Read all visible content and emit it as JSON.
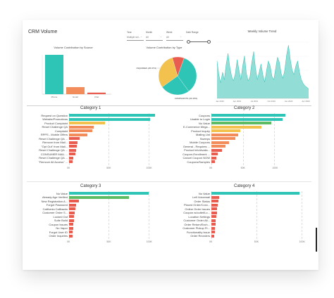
{
  "dashboard": {
    "title": "CRM Volume"
  },
  "filters": [
    {
      "label": "Year",
      "value": "Multiple sel..."
    },
    {
      "label": "Month",
      "value": "All"
    },
    {
      "label": "Week",
      "value": "All"
    },
    {
      "label": "Date Range",
      "value": ""
    }
  ],
  "colors": {
    "teal": "#2ec4b6",
    "orange": "#f28c5a",
    "red": "#e85d4f",
    "yellow": "#f2c14e",
    "green": "#5dbb63"
  },
  "source_chart": {
    "title": "Volume Contribution by Source",
    "categories": [
      "Phone",
      "Email",
      "Chat"
    ],
    "values": [
      100,
      18,
      4
    ],
    "colors": [
      "#2ec4b6",
      "#f28c5a",
      "#e85d4f"
    ]
  },
  "type_chart": {
    "title": "Volume Contribution by Type",
    "slices": [
      {
        "name": "COMPLAINTS (34.43%)",
        "value": 34.43,
        "color": "#2ec4b6"
      },
      {
        "name": "INQUIRIES (25.07%)",
        "value": 25.07,
        "color": "#2ec4b6"
      },
      {
        "name": "INFORMATION",
        "value": 30.5,
        "color": "#f2c14e"
      },
      {
        "name": "OTHER",
        "value": 10.0,
        "color": "#e85d4f"
      }
    ],
    "left_label": "INQUIRIES (25.07%)",
    "bottom_label": "COMPLAINTS (34.43%)"
  },
  "trend_chart": {
    "title": "Weekly Volume Trend",
    "x_ticks": [
      "Jan 2019",
      "Apr 2019",
      "Jul 2019",
      "Oct 2019",
      "Jan 2020",
      "Apr 2020"
    ],
    "values": [
      60,
      38,
      25,
      42,
      30,
      55,
      72,
      50,
      35,
      28,
      40,
      62,
      45,
      30,
      52,
      68,
      40,
      28,
      35,
      58,
      75,
      48,
      30,
      42,
      55,
      38,
      26,
      44,
      60,
      52,
      35,
      30,
      48,
      66,
      58,
      40,
      32,
      46,
      70,
      85,
      62,
      45,
      38,
      52,
      60,
      42,
      30,
      24,
      20,
      18,
      15
    ]
  },
  "category1": {
    "title": "Category 1",
    "labels": [
      "Request on Question",
      "Website/Promotions",
      "Product Complaint",
      "Reset Challenge QA",
      "Complaint",
      "RPPS - Mobile Offers",
      "Reset Challenge QA ...",
      "Remove from Mail...",
      "\"Opt Out\" from Mail...",
      "Reset Challenge QA ...",
      "CONSUMER MAIL ...",
      "Reset Challenge QA ...",
      "\"Remove All Access\" ..."
    ],
    "values": [
      108000,
      102000,
      45000,
      31000,
      29000,
      23000,
      13000,
      11000,
      10000,
      9000,
      8000,
      5000,
      4000
    ],
    "max": 120000,
    "ticks": [
      "0K",
      "50K",
      "100K"
    ],
    "tick_values": [
      0,
      50000,
      100000
    ]
  },
  "category2": {
    "title": "Category 2",
    "labels": [
      "Coupons",
      "Unable to Login",
      "No Value",
      "E-Commerce Mega...",
      "Product Inquiry",
      "Mailing List",
      "Sweeps",
      "Mobile Coupons",
      "General - Requires ...",
      "Product Info/Availa...",
      "Coupon-Enrollment ...",
      "Cancel Coupon NOW",
      "Coupons/Samples"
    ],
    "values": [
      118000,
      113000,
      95000,
      80000,
      46000,
      42000,
      38000,
      28000,
      22000,
      17000,
      10000,
      8000,
      6000
    ],
    "max": 140000,
    "ticks": [
      "0K",
      "50K",
      "100K"
    ],
    "tick_values": [
      0,
      50000,
      100000
    ]
  },
  "category3": {
    "title": "Category 3",
    "labels": [
      "No Value",
      "Already Age Verified",
      "New Registration A...",
      "Forgot Password",
      "California Callbacks",
      "Customer Order S...",
      "Locked Out",
      "Suite Build",
      "Coupon Issues",
      "No Vapor",
      "Forgot User ID",
      "Order Inquiries"
    ],
    "values": [
      100000,
      75000,
      12000,
      9000,
      8000,
      7000,
      6500,
      6000,
      5500,
      5000,
      4500,
      4000
    ],
    "max": 110000,
    "ticks": [
      "0K",
      "50K",
      "100K"
    ],
    "tick_values": [
      0,
      50000,
      100000
    ]
  },
  "category4": {
    "title": "Category 4",
    "labels": [
      "No Value",
      "Left Voicemail",
      "Order Status",
      "Placed Order/Conv...",
      "Online Order Issues",
      "Coupon w/outlet/Lo...",
      "Location Settings",
      "Customer Order Alt...",
      "Order Return/Exch...",
      "Customer Pickup Pr...",
      "Functionality Issue",
      "Order Reorders"
    ],
    "values": [
      98000,
      9000,
      8000,
      7000,
      6500,
      6000,
      5500,
      5000,
      4500,
      4200,
      4000,
      3500
    ],
    "max": 105000,
    "ticks": [
      "0K",
      "50K",
      "100K"
    ],
    "tick_values": [
      0,
      50000,
      100000
    ]
  }
}
